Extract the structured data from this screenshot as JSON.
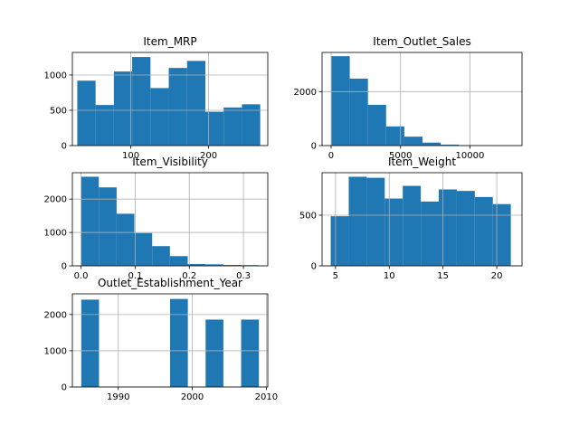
{
  "chart_data": [
    {
      "type": "bar",
      "title": "Item_MRP",
      "xlim": [
        25,
        276
      ],
      "ylim": [
        0,
        1320
      ],
      "xticks": [
        {
          "v": 100,
          "label": "100"
        },
        {
          "v": 200,
          "label": "200"
        }
      ],
      "yticks": [
        {
          "v": 0,
          "label": "0"
        },
        {
          "v": 500,
          "label": "500"
        },
        {
          "v": 1000,
          "label": "1000"
        }
      ],
      "bins": [
        {
          "x0": 31.3,
          "x1": 54.8,
          "y": 920
        },
        {
          "x0": 54.8,
          "x1": 78.3,
          "y": 575
        },
        {
          "x0": 78.3,
          "x1": 101.8,
          "y": 1050
        },
        {
          "x0": 101.8,
          "x1": 125.3,
          "y": 1255
        },
        {
          "x0": 125.3,
          "x1": 148.8,
          "y": 815
        },
        {
          "x0": 148.8,
          "x1": 172.3,
          "y": 1100
        },
        {
          "x0": 172.3,
          "x1": 195.8,
          "y": 1200
        },
        {
          "x0": 195.8,
          "x1": 219.3,
          "y": 480
        },
        {
          "x0": 219.3,
          "x1": 242.8,
          "y": 540
        },
        {
          "x0": 242.8,
          "x1": 266.3,
          "y": 585
        }
      ],
      "grid": true
    },
    {
      "type": "bar",
      "title": "Item_Outlet_Sales",
      "xlim": [
        -650,
        13750
      ],
      "ylim": [
        0,
        3450
      ],
      "xticks": [
        {
          "v": 0,
          "label": "0"
        },
        {
          "v": 5000,
          "label": "5000"
        },
        {
          "v": 10000,
          "label": "10000"
        }
      ],
      "yticks": [
        {
          "v": 0,
          "label": "0"
        },
        {
          "v": 2000,
          "label": "2000"
        }
      ],
      "bins": [
        {
          "x0": 33,
          "x1": 1343,
          "y": 3310
        },
        {
          "x0": 1343,
          "x1": 2653,
          "y": 2480
        },
        {
          "x0": 2653,
          "x1": 3963,
          "y": 1510
        },
        {
          "x0": 3963,
          "x1": 5273,
          "y": 710
        },
        {
          "x0": 5273,
          "x1": 6583,
          "y": 330
        },
        {
          "x0": 6583,
          "x1": 7893,
          "y": 110
        },
        {
          "x0": 7893,
          "x1": 9203,
          "y": 35
        },
        {
          "x0": 9203,
          "x1": 10513,
          "y": 10
        },
        {
          "x0": 10513,
          "x1": 11823,
          "y": 4
        },
        {
          "x0": 11823,
          "x1": 13133,
          "y": 1
        }
      ],
      "grid": true
    },
    {
      "type": "bar",
      "title": "Item_Visibility",
      "xlim": [
        -0.016,
        0.345
      ],
      "ylim": [
        0,
        2790
      ],
      "xticks": [
        {
          "v": 0,
          "label": "0.0"
        },
        {
          "v": 0.1,
          "label": "0.1"
        },
        {
          "v": 0.2,
          "label": "0.2"
        },
        {
          "v": 0.3,
          "label": "0.3"
        }
      ],
      "yticks": [
        {
          "v": 0,
          "label": "0"
        },
        {
          "v": 1000,
          "label": "1000"
        },
        {
          "v": 2000,
          "label": "2000"
        }
      ],
      "bins": [
        {
          "x0": 0,
          "x1": 0.0328,
          "y": 2670
        },
        {
          "x0": 0.0328,
          "x1": 0.0657,
          "y": 2350
        },
        {
          "x0": 0.0657,
          "x1": 0.0985,
          "y": 1560
        },
        {
          "x0": 0.0985,
          "x1": 0.1314,
          "y": 980
        },
        {
          "x0": 0.1314,
          "x1": 0.1642,
          "y": 590
        },
        {
          "x0": 0.1642,
          "x1": 0.1971,
          "y": 290
        },
        {
          "x0": 0.1971,
          "x1": 0.2299,
          "y": 55
        },
        {
          "x0": 0.2299,
          "x1": 0.2628,
          "y": 45
        },
        {
          "x0": 0.2628,
          "x1": 0.2956,
          "y": 25
        },
        {
          "x0": 0.2956,
          "x1": 0.3284,
          "y": 20
        }
      ],
      "grid": true
    },
    {
      "type": "bar",
      "title": "Item_Weight",
      "xlim": [
        3.75,
        22.35
      ],
      "ylim": [
        0,
        920
      ],
      "xticks": [
        {
          "v": 5,
          "label": "5"
        },
        {
          "v": 10,
          "label": "10"
        },
        {
          "v": 15,
          "label": "15"
        },
        {
          "v": 20,
          "label": "20"
        }
      ],
      "yticks": [
        {
          "v": 0,
          "label": "0"
        },
        {
          "v": 500,
          "label": "500"
        }
      ],
      "bins": [
        {
          "x0": 4.555,
          "x1": 6.23,
          "y": 490
        },
        {
          "x0": 6.23,
          "x1": 7.906,
          "y": 880
        },
        {
          "x0": 7.906,
          "x1": 9.581,
          "y": 870
        },
        {
          "x0": 9.581,
          "x1": 11.257,
          "y": 665
        },
        {
          "x0": 11.257,
          "x1": 12.932,
          "y": 790
        },
        {
          "x0": 12.932,
          "x1": 14.608,
          "y": 635
        },
        {
          "x0": 14.608,
          "x1": 16.283,
          "y": 755
        },
        {
          "x0": 16.283,
          "x1": 17.959,
          "y": 740
        },
        {
          "x0": 17.959,
          "x1": 19.634,
          "y": 680
        },
        {
          "x0": 19.634,
          "x1": 21.31,
          "y": 610
        }
      ],
      "grid": true
    },
    {
      "type": "bar",
      "title": "Outlet_Establishment_Year",
      "xlim": [
        1983.8,
        2010.2
      ],
      "ylim": [
        0,
        2570
      ],
      "xticks": [
        {
          "v": 1990,
          "label": "1990"
        },
        {
          "v": 2000,
          "label": "2000"
        },
        {
          "v": 2010,
          "label": "2010"
        }
      ],
      "yticks": [
        {
          "v": 0,
          "label": "0"
        },
        {
          "v": 1000,
          "label": "1000"
        },
        {
          "v": 2000,
          "label": "2000"
        }
      ],
      "bins": [
        {
          "x0": 1985,
          "x1": 1987.4,
          "y": 2410
        },
        {
          "x0": 1987.4,
          "x1": 1989.8,
          "y": 0
        },
        {
          "x0": 1989.8,
          "x1": 1992.2,
          "y": 0
        },
        {
          "x0": 1992.2,
          "x1": 1994.6,
          "y": 0
        },
        {
          "x0": 1994.6,
          "x1": 1997,
          "y": 0
        },
        {
          "x0": 1997,
          "x1": 1999.4,
          "y": 2430
        },
        {
          "x0": 1999.4,
          "x1": 2001.8,
          "y": 0
        },
        {
          "x0": 2001.8,
          "x1": 2004.2,
          "y": 1860
        },
        {
          "x0": 2004.2,
          "x1": 2006.6,
          "y": 0
        },
        {
          "x0": 2006.6,
          "x1": 2009,
          "y": 1860
        }
      ],
      "grid": true
    }
  ],
  "colors": {
    "bar": "#1f77b4",
    "grid": "#b0b0b0",
    "axis": "#000000",
    "background": "#ffffff"
  }
}
